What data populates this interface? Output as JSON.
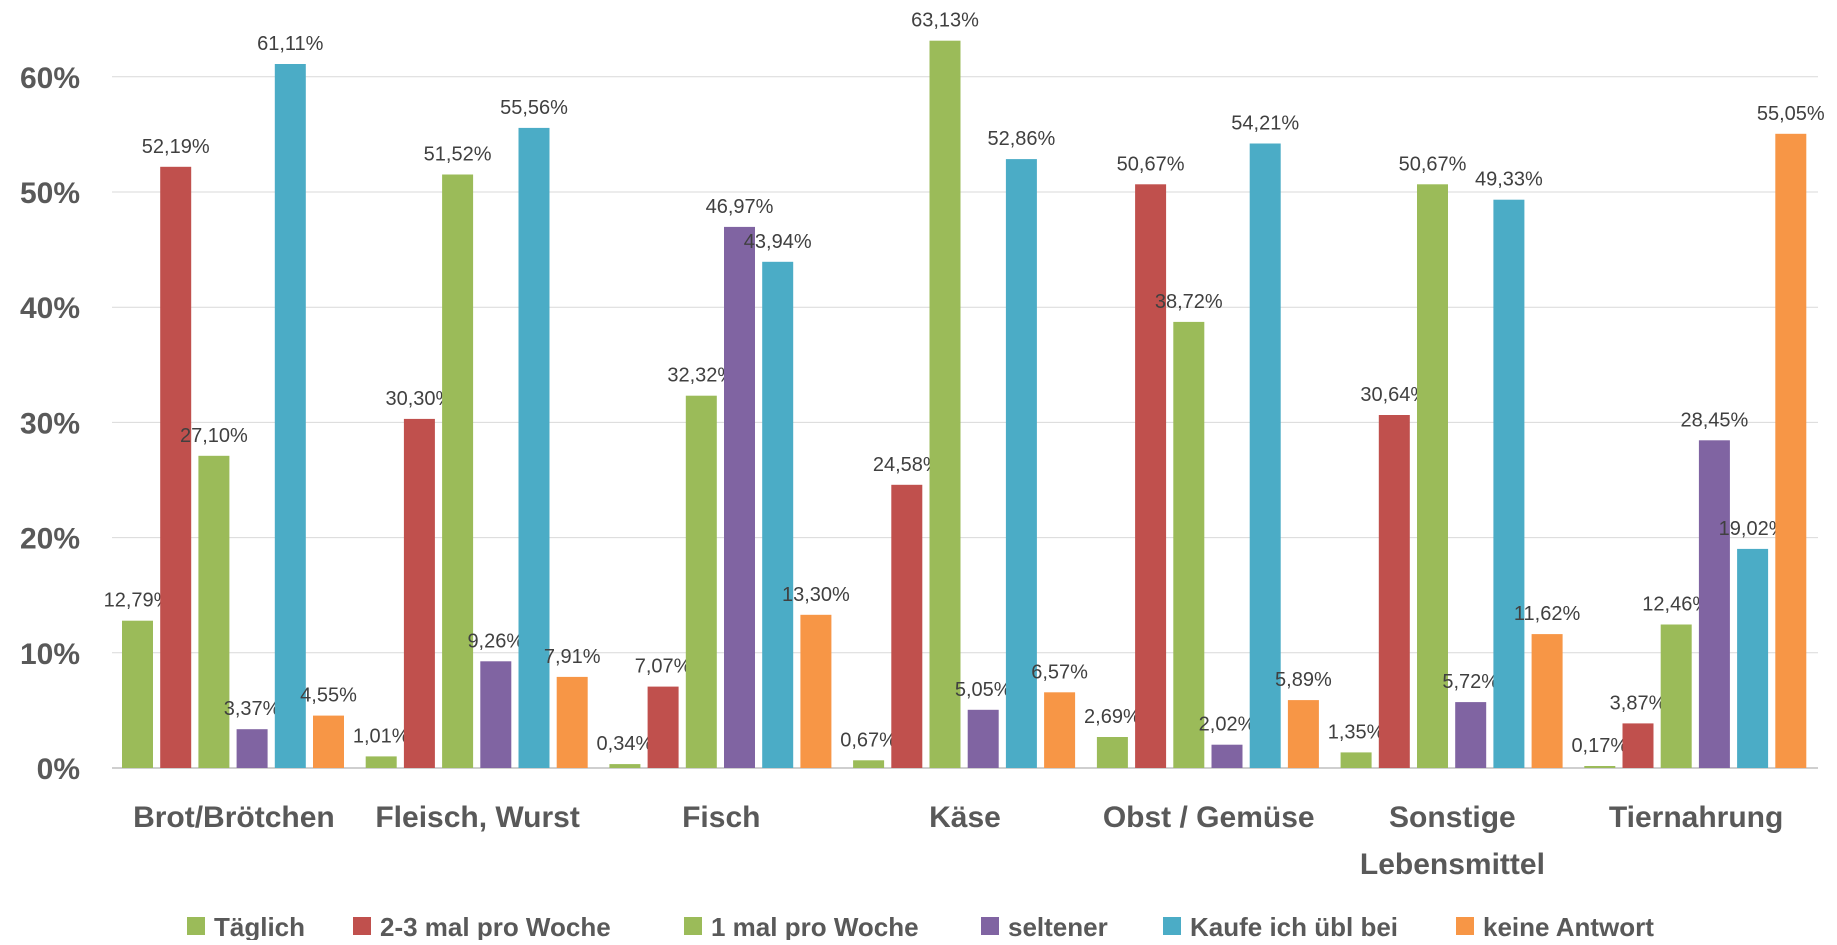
{
  "chart_data": {
    "type": "bar",
    "categories": [
      [
        "Brot/Brötchen"
      ],
      [
        "Fleisch, Wurst"
      ],
      [
        "Fisch"
      ],
      [
        "Käse"
      ],
      [
        "Obst / Gemüse"
      ],
      [
        "Sonstige",
        "Lebensmittel"
      ],
      [
        "Tiernahrung"
      ]
    ],
    "series": [
      {
        "name": "Täglich",
        "color": "#9BBB59",
        "values": [
          12.79,
          1.01,
          0.34,
          0.67,
          2.69,
          1.35,
          0.17
        ],
        "labels": [
          "12,79%",
          "1,01%",
          "0,34%",
          "0,67%",
          "2,69%",
          "1,35%",
          "0,17%"
        ]
      },
      {
        "name": "2-3 mal pro Woche",
        "color": "#C0504D",
        "values": [
          52.19,
          30.3,
          7.07,
          24.58,
          50.67,
          30.64,
          3.87
        ],
        "labels": [
          "52,19%",
          "30,30%",
          "7,07%",
          "24,58%",
          "50,67%",
          "30,64%",
          "3,87%"
        ]
      },
      {
        "name": "1 mal pro Woche",
        "color": "#9BBB59",
        "values": [
          27.1,
          51.52,
          32.32,
          63.13,
          38.72,
          50.67,
          12.46
        ],
        "labels": [
          "27,10%",
          "51,52%",
          "32,32%",
          "63,13%",
          "38,72%",
          "50,67%",
          "12,46%"
        ]
      },
      {
        "name": "seltener",
        "color": "#8064A2",
        "values": [
          3.37,
          9.26,
          46.97,
          5.05,
          2.02,
          5.72,
          28.45
        ],
        "labels": [
          "3,37%",
          "9,26%",
          "46,97%",
          "5,05%",
          "2,02%",
          "5,72%",
          "28,45%"
        ]
      },
      {
        "name": "Kaufe ich übl bei",
        "color": "#4BACC6",
        "values": [
          61.11,
          55.56,
          43.94,
          52.86,
          54.21,
          49.33,
          19.02
        ],
        "labels": [
          "61,11%",
          "55,56%",
          "43,94%",
          "52,86%",
          "54,21%",
          "49,33%",
          "19,02%"
        ]
      },
      {
        "name": "keine Antwort",
        "color": "#F79646",
        "values": [
          4.55,
          7.91,
          13.3,
          6.57,
          5.89,
          11.62,
          55.05
        ],
        "labels": [
          "4,55%",
          "7,91%",
          "13,30%",
          "6,57%",
          "5,89%",
          "11,62%",
          "55,05%"
        ]
      }
    ],
    "yticks": [
      "0%",
      "10%",
      "20%",
      "30%",
      "40%",
      "50%",
      "60%"
    ],
    "ylim": [
      0,
      70
    ],
    "grid": true,
    "legend_position": "bottom"
  }
}
